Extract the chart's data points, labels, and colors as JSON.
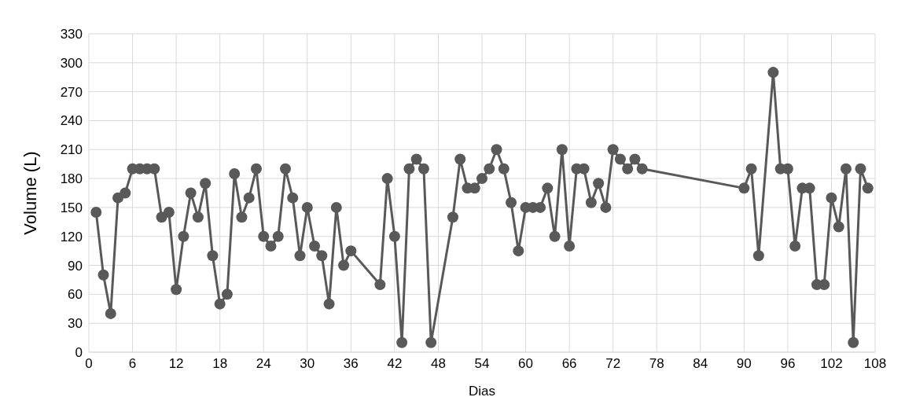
{
  "chart_data": {
    "type": "line",
    "xlabel": "Dias",
    "ylabel": "Volume (L)",
    "x": [
      1,
      2,
      3,
      4,
      5,
      6,
      7,
      8,
      9,
      10,
      11,
      12,
      13,
      14,
      15,
      16,
      17,
      18,
      19,
      20,
      21,
      22,
      23,
      24,
      25,
      26,
      27,
      28,
      29,
      30,
      31,
      32,
      33,
      34,
      35,
      36,
      40,
      41,
      42,
      43,
      44,
      45,
      46,
      47,
      50,
      51,
      52,
      53,
      54,
      55,
      56,
      57,
      58,
      59,
      60,
      61,
      62,
      63,
      64,
      65,
      66,
      67,
      68,
      69,
      70,
      71,
      72,
      73,
      74,
      75,
      76,
      90,
      91,
      92,
      94,
      95,
      96,
      97,
      98,
      99,
      100,
      101,
      102,
      103,
      104,
      105,
      106,
      107
    ],
    "series": [
      {
        "color": "#595959",
        "values": [
          145,
          80,
          40,
          160,
          165,
          190,
          190,
          190,
          190,
          140,
          145,
          65,
          120,
          165,
          140,
          175,
          100,
          50,
          60,
          185,
          140,
          160,
          190,
          120,
          110,
          120,
          190,
          160,
          100,
          150,
          110,
          100,
          50,
          150,
          90,
          105,
          70,
          180,
          120,
          10,
          190,
          200,
          190,
          10,
          140,
          200,
          170,
          170,
          180,
          190,
          210,
          190,
          155,
          105,
          150,
          150,
          150,
          170,
          120,
          210,
          110,
          190,
          190,
          155,
          175,
          150,
          210,
          200,
          190,
          200,
          190,
          170,
          190,
          100,
          290,
          190,
          190,
          110,
          170,
          170,
          70,
          70,
          160,
          130,
          190,
          10,
          190,
          170
        ]
      }
    ],
    "xlim": [
      0,
      108
    ],
    "xticks": [
      0,
      6,
      12,
      18,
      24,
      30,
      36,
      42,
      48,
      54,
      60,
      66,
      72,
      78,
      84,
      90,
      96,
      102,
      108
    ],
    "ylim": [
      0,
      330
    ],
    "yticks": [
      0,
      30,
      60,
      90,
      120,
      150,
      180,
      210,
      240,
      270,
      300,
      330
    ],
    "grid": true,
    "marker": "circle",
    "line_style": "solid",
    "legend": false
  }
}
